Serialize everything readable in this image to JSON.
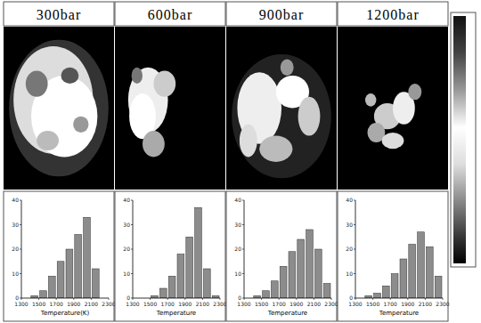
{
  "chart_data": [
    {
      "type": "histogram",
      "title": "300bar",
      "x_label": "Temperature(K)",
      "bins": [
        1300,
        1400,
        1500,
        1600,
        1700,
        1800,
        1900,
        2000,
        2100,
        2200,
        2300
      ],
      "values": [
        0,
        1,
        3,
        9,
        15,
        20,
        26,
        33,
        12,
        0
      ],
      "color": "#8c8c8c",
      "xlim": [
        1300,
        2300
      ],
      "xticks": [
        1300,
        1500,
        1700,
        1900,
        2100,
        2300
      ],
      "ylim": [
        0,
        40
      ],
      "yticks": [
        0,
        10,
        20,
        30,
        40
      ]
    },
    {
      "type": "histogram",
      "title": "600bar",
      "x_label": "Temperature",
      "bins": [
        1300,
        1400,
        1500,
        1600,
        1700,
        1800,
        1900,
        2000,
        2100,
        2200,
        2300
      ],
      "values": [
        0,
        0,
        1,
        4,
        9,
        18,
        25,
        37,
        12,
        1
      ],
      "color": "#8c8c8c",
      "xlim": [
        1300,
        2300
      ],
      "xticks": [
        1300,
        1500,
        1700,
        1900,
        2100,
        2300
      ],
      "ylim": [
        0,
        40
      ],
      "yticks": [
        0,
        10,
        20,
        30,
        40
      ]
    },
    {
      "type": "histogram",
      "title": "900bar",
      "x_label": "Temperature",
      "bins": [
        1300,
        1400,
        1500,
        1600,
        1700,
        1800,
        1900,
        2000,
        2100,
        2200,
        2300
      ],
      "values": [
        0,
        1,
        3,
        7,
        13,
        19,
        24,
        28,
        20,
        6
      ],
      "color": "#8c8c8c",
      "xlim": [
        1300,
        2300
      ],
      "xticks": [
        1300,
        1500,
        1700,
        1900,
        2100,
        2300
      ],
      "ylim": [
        0,
        40
      ],
      "yticks": [
        0,
        10,
        20,
        30,
        40
      ]
    },
    {
      "type": "histogram",
      "title": "1200bar",
      "x_label": "Temperature",
      "bins": [
        1300,
        1400,
        1500,
        1600,
        1700,
        1800,
        1900,
        2000,
        2100,
        2200,
        2300
      ],
      "values": [
        0,
        1,
        2,
        5,
        10,
        16,
        22,
        27,
        21,
        9
      ],
      "color": "#8c8c8c",
      "xlim": [
        1300,
        2300
      ],
      "xticks": [
        1300,
        1500,
        1700,
        1900,
        2100,
        2300
      ],
      "ylim": [
        0,
        40
      ],
      "yticks": [
        0,
        10,
        20,
        30,
        40
      ]
    }
  ]
}
